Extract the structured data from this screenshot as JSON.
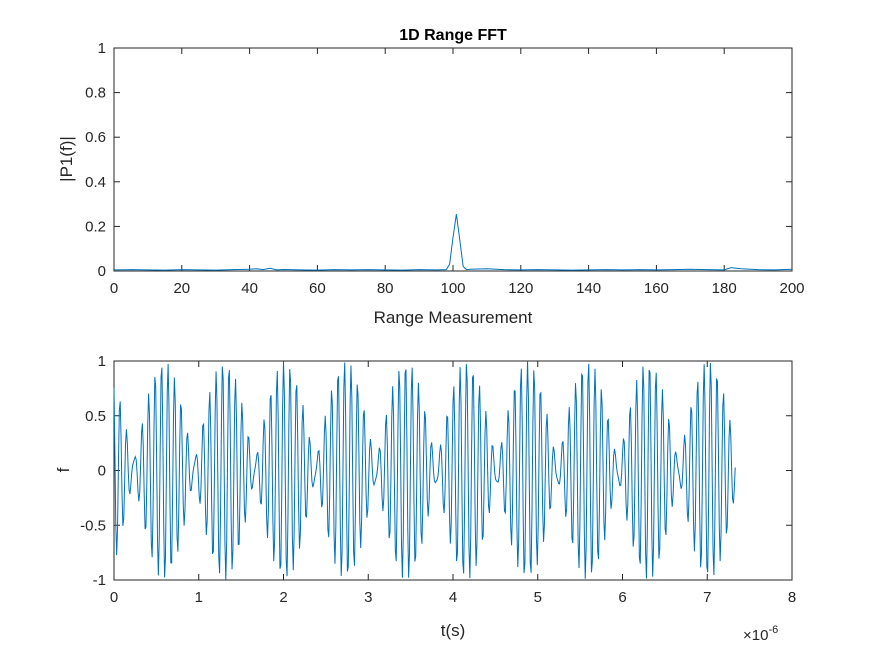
{
  "chart_data": [
    {
      "type": "line",
      "title": "1D Range FFT",
      "xlabel": "Range Measurement",
      "ylabel": "|P1(f)|",
      "xlim": [
        0,
        200
      ],
      "ylim": [
        0,
        1
      ],
      "xticks": [
        0,
        20,
        40,
        60,
        80,
        100,
        120,
        140,
        160,
        180,
        200
      ],
      "yticks": [
        0,
        0.2,
        0.4,
        0.6,
        0.8,
        1
      ],
      "xtick_labels": [
        "0",
        "20",
        "40",
        "60",
        "80",
        "100",
        "120",
        "140",
        "160",
        "180",
        "200"
      ],
      "ytick_labels": [
        "0",
        "0.2",
        "0.4",
        "0.6",
        "0.8",
        "1"
      ],
      "grid": false,
      "series": [
        {
          "color": "#0072BD",
          "x": [
            0,
            5,
            10,
            15,
            20,
            25,
            30,
            35,
            40,
            42,
            44,
            46,
            48,
            50,
            55,
            60,
            65,
            70,
            75,
            80,
            85,
            90,
            95,
            98,
            99,
            100,
            101,
            102,
            103,
            104,
            105,
            110,
            115,
            120,
            125,
            130,
            135,
            140,
            145,
            150,
            155,
            160,
            165,
            170,
            175,
            180,
            182,
            185,
            190,
            195,
            200
          ],
          "y": [
            0.005,
            0.006,
            0.005,
            0.004,
            0.006,
            0.005,
            0.004,
            0.006,
            0.008,
            0.01,
            0.006,
            0.012,
            0.005,
            0.007,
            0.005,
            0.004,
            0.006,
            0.005,
            0.006,
            0.005,
            0.004,
            0.006,
            0.005,
            0.006,
            0.03,
            0.15,
            0.255,
            0.14,
            0.02,
            0.006,
            0.008,
            0.01,
            0.006,
            0.005,
            0.006,
            0.005,
            0.004,
            0.005,
            0.006,
            0.005,
            0.006,
            0.005,
            0.006,
            0.008,
            0.006,
            0.005,
            0.015,
            0.01,
            0.006,
            0.005,
            0.008
          ]
        }
      ]
    },
    {
      "type": "line",
      "title": "",
      "xlabel": "t(s)",
      "ylabel": "f",
      "xlim": [
        0,
        8
      ],
      "ylim": [
        -1,
        1
      ],
      "xticks": [
        0,
        1,
        2,
        3,
        4,
        5,
        6,
        7,
        8
      ],
      "yticks": [
        -1,
        -0.5,
        0,
        0.5,
        1
      ],
      "xtick_labels": [
        "0",
        "1",
        "2",
        "3",
        "4",
        "5",
        "6",
        "7",
        "8"
      ],
      "ytick_labels": [
        "-1",
        "-0.5",
        "0",
        "0.5",
        "1"
      ],
      "x_exponent_label": "×10",
      "x_exponent_power": "-6",
      "grid": false,
      "signal": {
        "color": "#0072BD",
        "t_end": 7.33,
        "samples": 700,
        "components": [
          {
            "amp": 0.55,
            "freq": 12.5,
            "phase": 0.0
          },
          {
            "amp": 0.45,
            "freq": 13.9,
            "phase": 1.1
          }
        ]
      }
    }
  ]
}
